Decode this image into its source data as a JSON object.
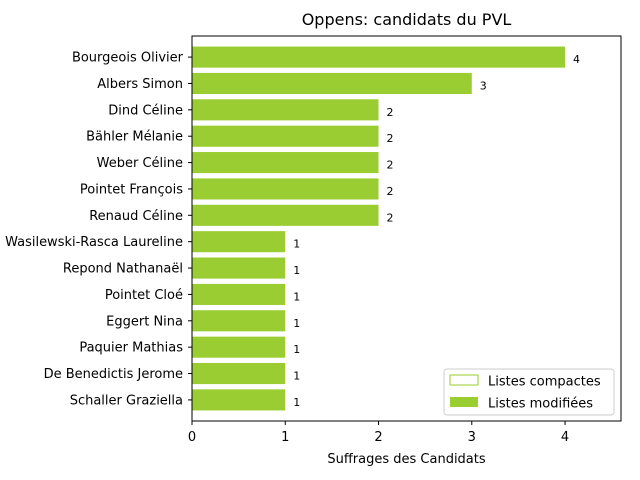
{
  "chart_data": {
    "type": "bar",
    "orientation": "horizontal",
    "title": "Oppens: candidats du PVL",
    "xlabel": "Suffrages des Candidats",
    "ylabel": "",
    "xlim": [
      0,
      4.6
    ],
    "xticks": [
      "0",
      "1",
      "2",
      "3",
      "4"
    ],
    "grid": false,
    "legend_position": "lower right",
    "categories": [
      "Bourgeois Olivier",
      "Albers Simon",
      "Dind Céline",
      "Bähler Mélanie",
      "Weber Céline",
      "Pointet François",
      "Renaud Céline",
      "Wasilewski-Rasca Laureline",
      "Repond Nathanaël",
      "Pointet Cloé",
      "Eggert Nina",
      "Paquier Mathias",
      "De Benedictis Jerome",
      "Schaller Graziella"
    ],
    "series": [
      {
        "name": "Listes compactes",
        "color": "#9acd32",
        "style": "outline",
        "values": [
          0,
          0,
          0,
          0,
          0,
          0,
          0,
          0,
          0,
          0,
          0,
          0,
          0,
          0
        ]
      },
      {
        "name": "Listes modifiées",
        "color": "#9acd32",
        "style": "filled",
        "values": [
          4,
          3,
          2,
          2,
          2,
          2,
          2,
          1,
          1,
          1,
          1,
          1,
          1,
          1
        ]
      }
    ],
    "data_labels": [
      "4",
      "3",
      "2",
      "2",
      "2",
      "2",
      "2",
      "1",
      "1",
      "1",
      "1",
      "1",
      "1",
      "1"
    ]
  }
}
